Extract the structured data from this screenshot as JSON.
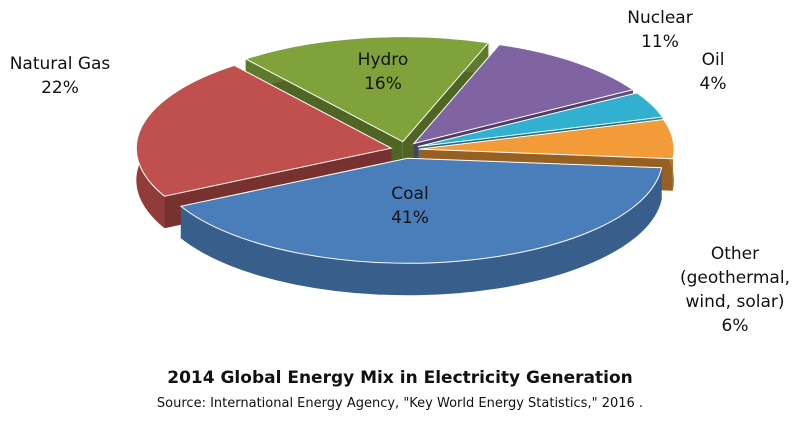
{
  "chart_data": {
    "type": "pie3d",
    "title": "2014 Global Energy Mix in Electricity Generation",
    "source": "Source: International Energy Agency, \"Key World Energy Statistics,\" 2016 .",
    "categories": [
      "Hydro",
      "Nuclear",
      "Oil",
      "Other (geothermal, wind, solar)",
      "Coal",
      "Natural Gas"
    ],
    "values": [
      16,
      11,
      4,
      6,
      41,
      22
    ],
    "value_labels": [
      "16%",
      "11%",
      "4%",
      "6%",
      "41%",
      "22%"
    ],
    "colors": [
      "#7fa33a",
      "#8064a2",
      "#31b0d0",
      "#f29b38",
      "#4a7ebb",
      "#c0504d"
    ]
  }
}
